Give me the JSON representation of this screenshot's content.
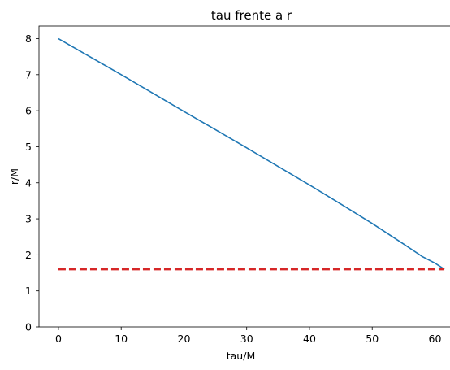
{
  "chart_data": {
    "type": "line",
    "title": "tau frente a r",
    "xlabel": "tau/M",
    "ylabel": "r/M",
    "xlim": [
      -3.1,
      64.6
    ],
    "ylim": [
      0,
      8.35
    ],
    "xticks": [
      0,
      10,
      20,
      30,
      40,
      50,
      60
    ],
    "yticks": [
      0,
      1,
      2,
      3,
      4,
      5,
      6,
      7,
      8
    ],
    "grid": false,
    "series": [
      {
        "color": "#1f77b4",
        "style": "solid",
        "x": [
          0,
          10,
          20,
          30,
          40,
          45,
          50,
          55,
          58,
          60,
          61.5
        ],
        "y": [
          8.0,
          7.0,
          5.98,
          4.97,
          3.94,
          3.41,
          2.87,
          2.3,
          1.95,
          1.77,
          1.6
        ]
      },
      {
        "color": "#d62728",
        "style": "dashed",
        "x": [
          0,
          61.5
        ],
        "y": [
          1.6,
          1.6
        ]
      }
    ]
  }
}
